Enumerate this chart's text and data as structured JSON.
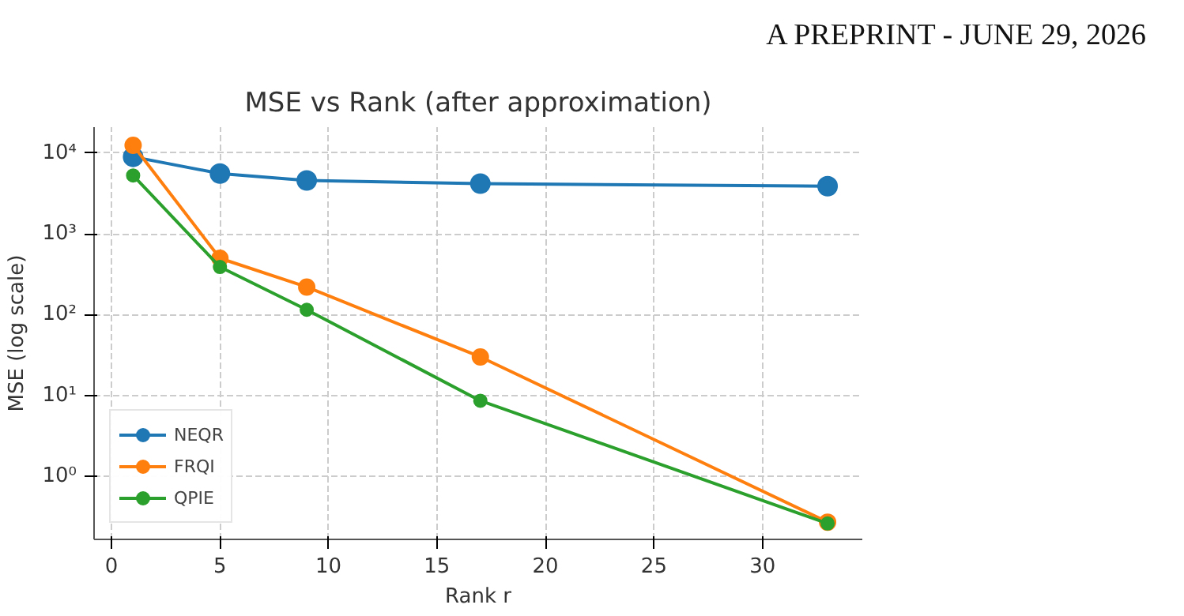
{
  "chart_data": {
    "type": "line",
    "title": "MSE vs Rank (after approximation)",
    "xlabel": "Rank r",
    "ylabel": "MSE (log scale)",
    "annotations": [
      "A PREPRINT - JUNE 29, 2026"
    ],
    "x": [
      1,
      5,
      9,
      17,
      33
    ],
    "series": [
      {
        "name": "NEQR",
        "color": "#1f77b4",
        "values": [
          9000,
          5600,
          4600,
          4200,
          3900
        ]
      },
      {
        "name": "FRQI",
        "color": "#ff7f0e",
        "values": [
          12500,
          500,
          220,
          30,
          0.27
        ]
      },
      {
        "name": "QPIE",
        "color": "#2ca02c",
        "values": [
          5300,
          390,
          115,
          8.6,
          0.26
        ]
      }
    ],
    "log": true,
    "xlim": [
      -0.8,
      34.6
    ],
    "xticks": [
      0,
      5,
      10,
      15,
      20,
      25,
      30
    ],
    "ylim": [
      0.165,
      21000
    ],
    "yticks": [
      {
        "value": 1,
        "label": "10⁰"
      },
      {
        "value": 10,
        "label": "10¹"
      },
      {
        "value": 100,
        "label": "10²"
      },
      {
        "value": 1000,
        "label": "10³"
      },
      {
        "value": 10000,
        "label": "10⁴"
      }
    ],
    "grid": true,
    "legend": "bottom left",
    "marker": "circle",
    "line_style": "solid"
  }
}
